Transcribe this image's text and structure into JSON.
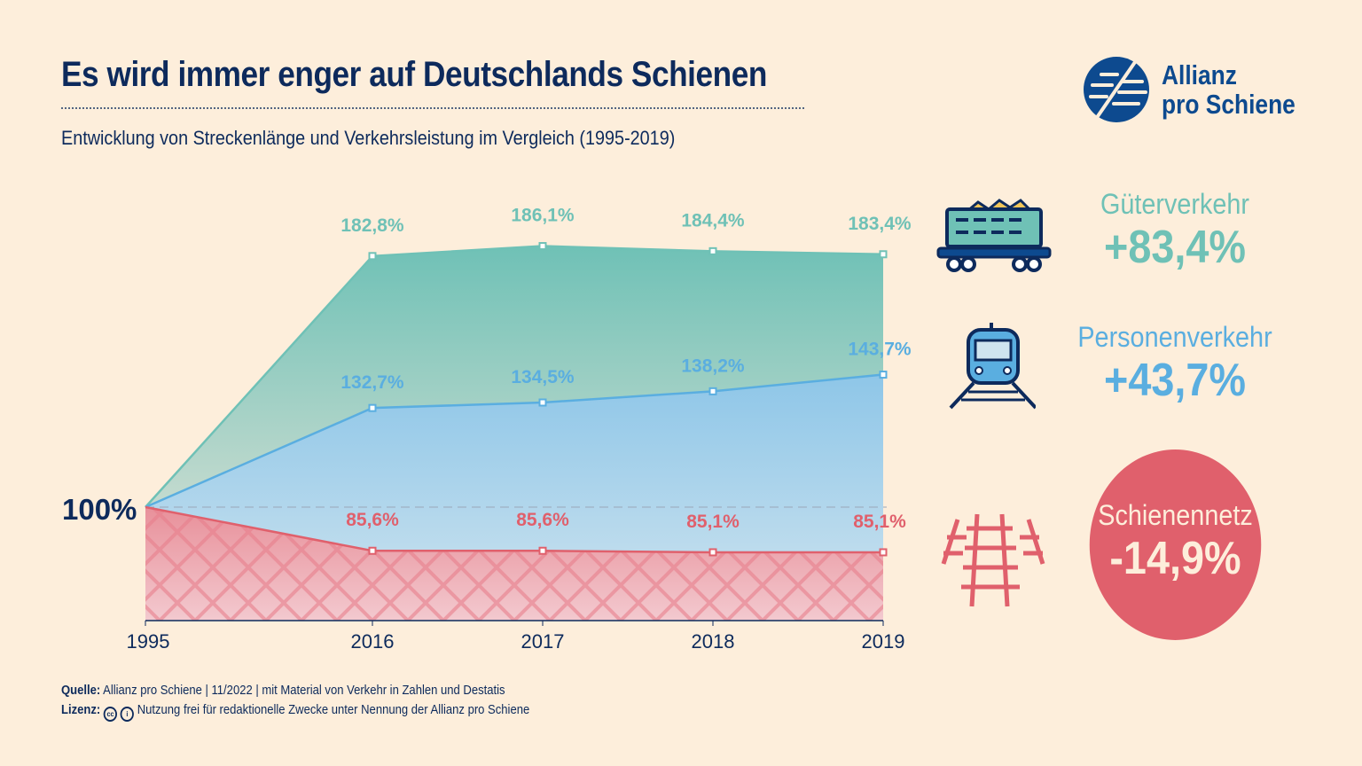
{
  "header": {
    "title": "Es wird immer enger auf Deutschlands Schienen",
    "subtitle": "Entwicklung von Streckenlänge und Verkehrsleistung im Vergleich (1995-2019)"
  },
  "logo": {
    "line1": "Allianz",
    "line2": "pro Schiene"
  },
  "colors": {
    "gueter": "#6fc1b6",
    "personen": "#5aaee0",
    "netz": "#e0606c",
    "navy": "#0d2a5c",
    "background": "#fdeedb"
  },
  "chart_data": {
    "type": "area",
    "categories": [
      "1995",
      "2016",
      "2017",
      "2018",
      "2019"
    ],
    "baseline_label": "100%",
    "ylim": [
      62.6,
      190
    ],
    "grid": false,
    "series": [
      {
        "name": "Güterverkehr",
        "values": [
          100,
          182.8,
          186.1,
          184.4,
          183.4
        ],
        "labels": [
          "",
          "182,8%",
          "186,1%",
          "184,4%",
          "183,4%"
        ]
      },
      {
        "name": "Personenverkehr",
        "values": [
          100,
          132.7,
          134.5,
          138.2,
          143.7
        ],
        "labels": [
          "",
          "132,7%",
          "134,5%",
          "138,2%",
          "143,7%"
        ]
      },
      {
        "name": "Schienennetz",
        "values": [
          100,
          85.6,
          85.6,
          85.1,
          85.1
        ],
        "labels": [
          "",
          "85,6%",
          "85,6%",
          "85,1%",
          "85,1%"
        ]
      }
    ]
  },
  "side": [
    {
      "label": "Güterverkehr",
      "value": "+83,4%",
      "icon": "freight-wagon-icon"
    },
    {
      "label": "Personenverkehr",
      "value": "+43,7%",
      "icon": "train-icon"
    },
    {
      "label": "Schienennetz",
      "value": "-14,9%",
      "icon": "rail-track-icon"
    }
  ],
  "footer": {
    "source_label": "Quelle:",
    "source": "Allianz pro Schiene | 11/2022 | mit Material von Verkehr in Zahlen und Destatis",
    "license_label": "Lizenz:",
    "cc": "cc",
    "license": "Nutzung frei für redaktionelle Zwecke unter Nennung der Allianz pro Schiene"
  }
}
